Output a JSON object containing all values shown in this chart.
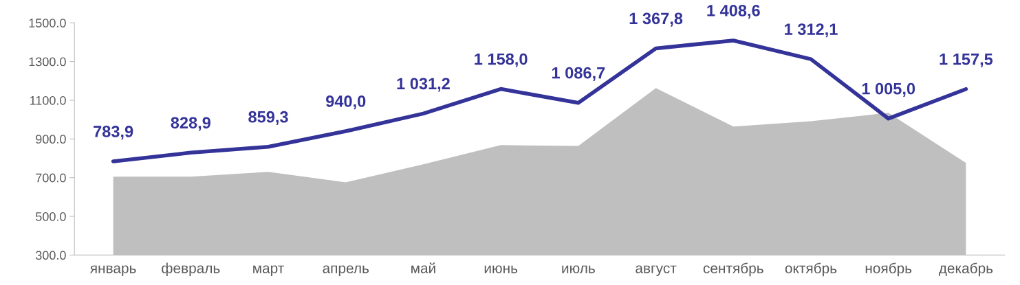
{
  "chart_data": {
    "type": "line",
    "categories": [
      "январь",
      "февраль",
      "март",
      "апрель",
      "май",
      "июнь",
      "июль",
      "август",
      "сентябрь",
      "октябрь",
      "ноябрь",
      "декабрь"
    ],
    "series": [
      {
        "type": "area",
        "color": "#bfbfbf",
        "values": [
          705,
          705,
          730,
          676,
          769,
          868,
          864,
          1163,
          964,
          992,
          1035,
          776
        ]
      },
      {
        "color": "#333399",
        "values": [
          783.9,
          828.9,
          859.3,
          940.0,
          1031.2,
          1158.0,
          1086.7,
          1367.8,
          1408.6,
          1312.1,
          1005.0,
          1157.5
        ],
        "value_labels": [
          "783,9",
          "828,9",
          "859,3",
          "940,0",
          "1 031,2",
          "1 158,0",
          "1 086,7",
          "1 367,8",
          "1 408,6",
          "1 312,1",
          "1 005,0",
          "1 157,5"
        ]
      }
    ],
    "ylim": [
      300,
      1500
    ],
    "yticks": [
      {
        "value": 300,
        "label": "300.0"
      },
      {
        "value": 500,
        "label": "500.0"
      },
      {
        "value": 700,
        "label": "700.0"
      },
      {
        "value": 900,
        "label": "900.0"
      },
      {
        "value": 1100,
        "label": "1100.0"
      },
      {
        "value": 1300,
        "label": "1300.0"
      },
      {
        "value": 1500,
        "label": "1500.0"
      }
    ],
    "grid": false,
    "legend": false
  }
}
